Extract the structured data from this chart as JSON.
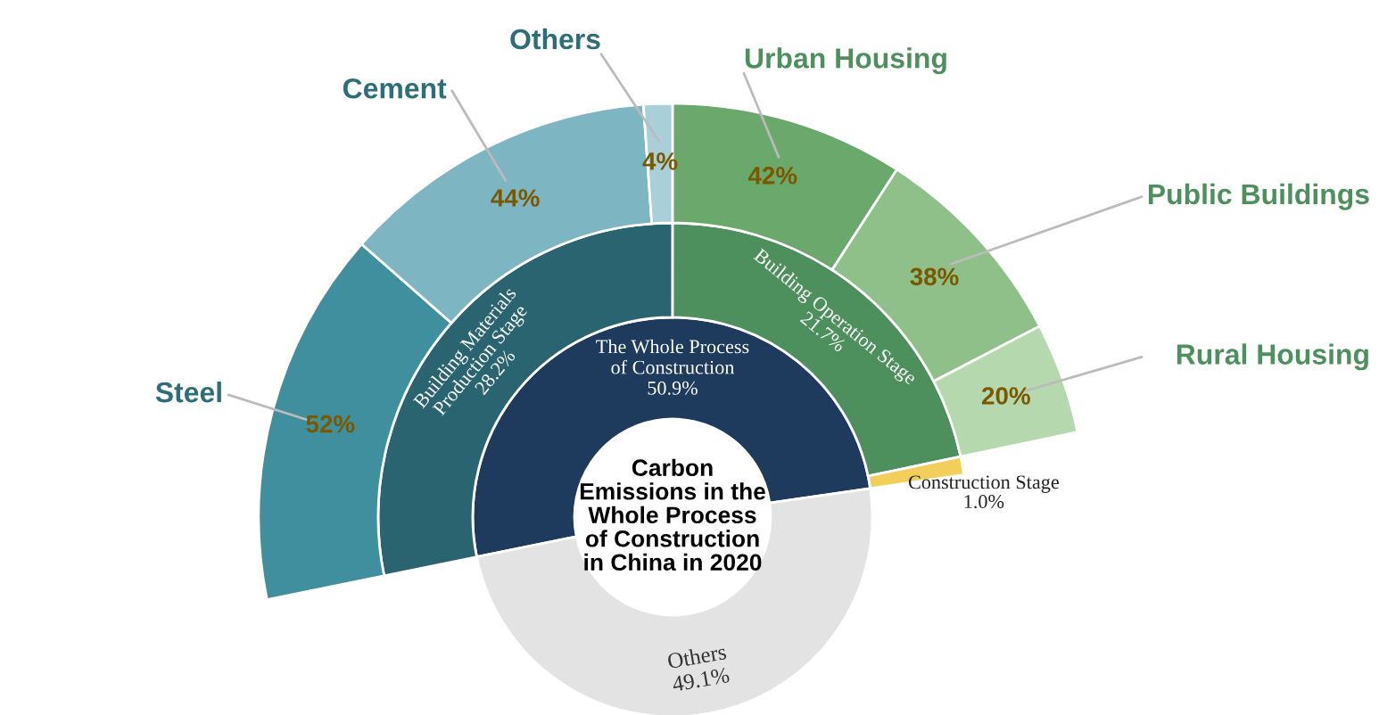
{
  "chart_data": [
    {
      "type": "other",
      "title": "Carbon\nEmissions in the\nWhole Process\nof Construction\nin China in 2020",
      "categories": [
        "The Whole Process\nof Construction",
        "Others"
      ],
      "values": [
        50.9,
        49.1
      ],
      "value_labels": [
        "50.9%",
        "49.1%"
      ],
      "colors": [
        "#1e3a5c",
        "#e3e3e3"
      ]
    },
    {
      "type": "other",
      "categories": [
        "Building Materials\nProduction Stage",
        "Building Operation Stage",
        "Construction Stage"
      ],
      "values": [
        28.2,
        21.7,
        1.0
      ],
      "value_labels": [
        "28.2%",
        "21.7%",
        "1.0%"
      ],
      "colors": [
        "#2a6470",
        "#4e8f5e",
        "#f2cf5b"
      ]
    },
    {
      "type": "other",
      "categories": [
        "Steel",
        "Cement",
        "Others",
        "Urban Housing",
        "Public Buildings",
        "Rural Housing"
      ],
      "values": [
        52,
        44,
        4,
        42,
        38,
        20
      ],
      "value_labels": [
        "52%",
        "44%",
        "4%",
        "42%",
        "38%",
        "20%"
      ],
      "colors": [
        "#3f8f9f",
        "#7db5c2",
        "#a9d0d9",
        "#6aa86b",
        "#8fc08a",
        "#b5d8ae"
      ]
    }
  ]
}
